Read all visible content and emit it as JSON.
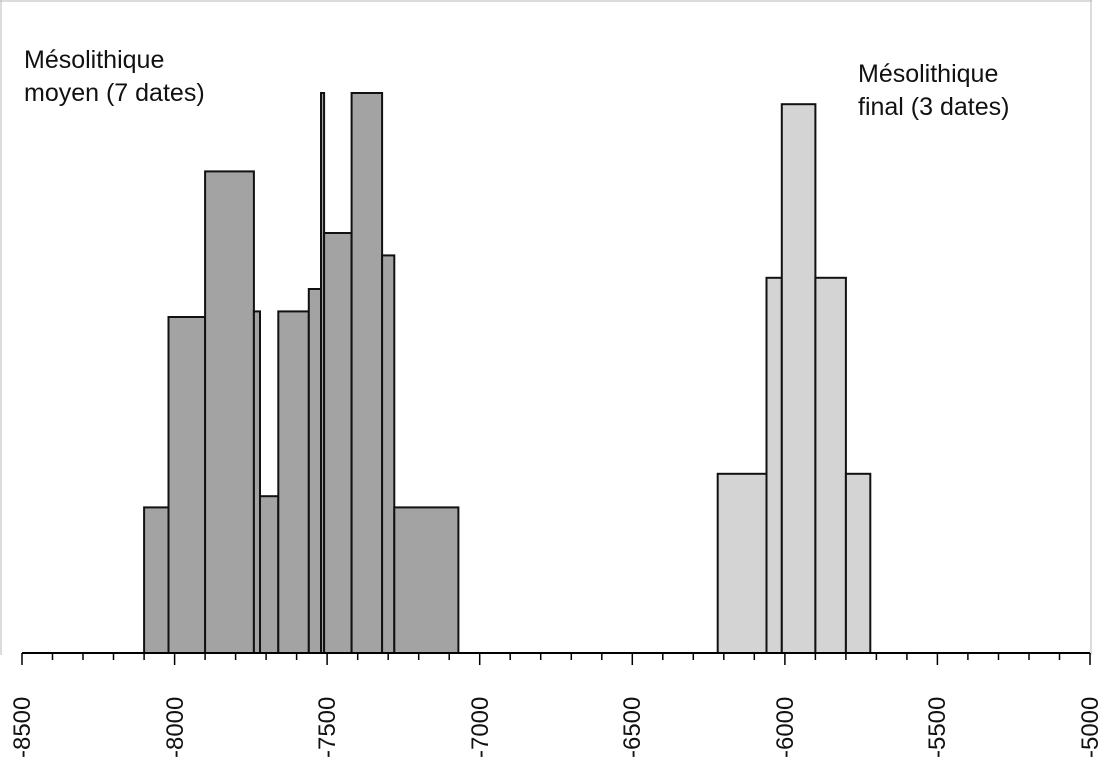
{
  "chart_data": {
    "type": "bar",
    "title": "",
    "xlabel": "",
    "ylabel": "",
    "xlim": [
      -8500,
      -5000
    ],
    "ylim": [
      0,
      10
    ],
    "grid": false,
    "x_tick_labels": [
      "-8500",
      "-8000",
      "-7500",
      "-7000",
      "-6500",
      "-6000",
      "-5500",
      "-5000"
    ],
    "colors": {
      "mesolithique_moyen": "#a3a3a3",
      "mesolithique_final": "#d4d4d4"
    },
    "series": [
      {
        "label_line1": "Mésolithique",
        "label_line2": "moyen (7 dates)",
        "bins": [
          {
            "x0": -8100,
            "x1": -8020,
            "y": 2.6
          },
          {
            "x0": -8020,
            "x1": -7900,
            "y": 6.0
          },
          {
            "x0": -7900,
            "x1": -7740,
            "y": 8.6
          },
          {
            "x0": -7740,
            "x1": -7720,
            "y": 6.1
          },
          {
            "x0": -7720,
            "x1": -7660,
            "y": 2.8
          },
          {
            "x0": -7660,
            "x1": -7560,
            "y": 6.1
          },
          {
            "x0": -7560,
            "x1": -7520,
            "y": 6.5
          },
          {
            "x0": -7520,
            "x1": -7510,
            "y": 10.0
          },
          {
            "x0": -7510,
            "x1": -7420,
            "y": 7.5
          },
          {
            "x0": -7420,
            "x1": -7320,
            "y": 10.0
          },
          {
            "x0": -7320,
            "x1": -7280,
            "y": 7.1
          },
          {
            "x0": -7280,
            "x1": -7070,
            "y": 2.6
          }
        ]
      },
      {
        "label_line1": "Mésolithique",
        "label_line2": "final (3 dates)",
        "bins": [
          {
            "x0": -6220,
            "x1": -6060,
            "y": 3.2
          },
          {
            "x0": -6060,
            "x1": -6010,
            "y": 6.7
          },
          {
            "x0": -6010,
            "x1": -5900,
            "y": 9.8
          },
          {
            "x0": -5900,
            "x1": -5800,
            "y": 6.7
          },
          {
            "x0": -5800,
            "x1": -5720,
            "y": 3.2
          }
        ]
      }
    ]
  }
}
